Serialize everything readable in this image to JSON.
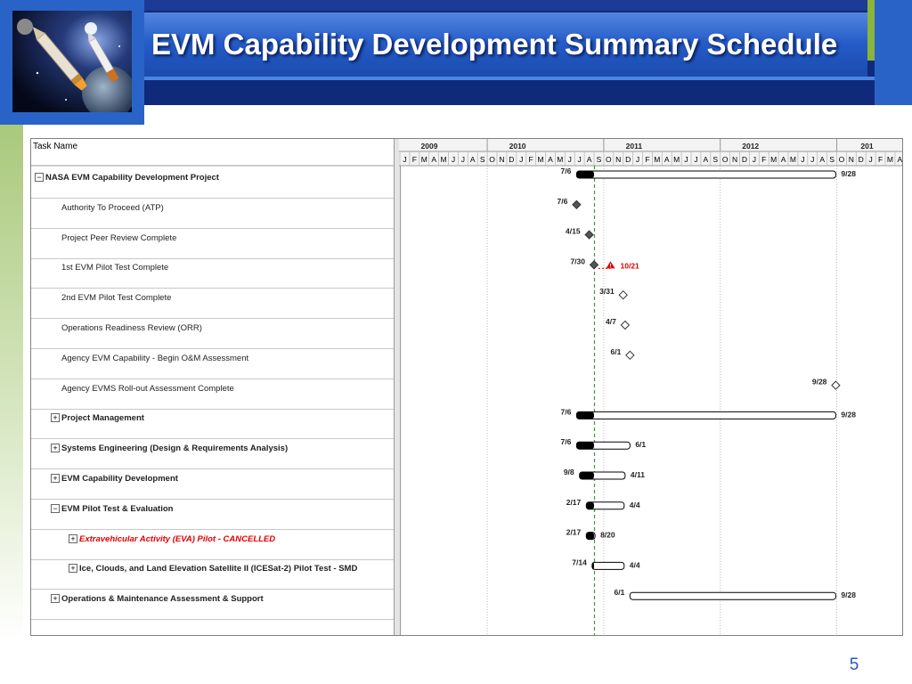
{
  "slide": {
    "title": "EVM Capability Development Summary Schedule",
    "page_number": "5"
  },
  "colors": {
    "header_dark": "#0f2a7a",
    "title_band": "#2359c4",
    "accent_green": "#8ab43c",
    "bar_fill": "#000000",
    "milestone_complete": "#555555",
    "status_line": "#3a9a3a",
    "slip_red": "#e00000"
  },
  "gantt": {
    "column_header": "Task Name",
    "years": [
      "2009",
      "2010",
      "2011",
      "2012",
      "201"
    ],
    "months": [
      "J",
      "F",
      "M",
      "A",
      "M",
      "J",
      "J",
      "A",
      "S",
      "O",
      "N",
      "D",
      "J",
      "F",
      "M",
      "A",
      "M",
      "J",
      "J",
      "A",
      "S",
      "O",
      "N",
      "D",
      "J",
      "F",
      "M",
      "A",
      "M",
      "J",
      "J",
      "A",
      "S",
      "O",
      "N",
      "D",
      "J",
      "F",
      "M",
      "A",
      "M",
      "J",
      "J",
      "A",
      "S",
      "O",
      "N",
      "D",
      "J",
      "F",
      "M",
      "A"
    ],
    "status_date": "8/2010",
    "tasks": [
      {
        "name": "NASA EVM Capability Development Project",
        "level": 0,
        "bold": true,
        "expander": "−",
        "kind": "summary",
        "start": "7/6",
        "end": "9/28",
        "start_month": 18.2,
        "status_month": 20.0,
        "end_month": 44.9
      },
      {
        "name": "Authority To Proceed (ATP)",
        "level": 2,
        "kind": "milestone-done",
        "label": "7/6",
        "month": 18.2
      },
      {
        "name": "Project Peer Review Complete",
        "level": 2,
        "kind": "milestone-done",
        "label": "4/15",
        "month": 19.5
      },
      {
        "name": "1st EVM Pilot Test Complete",
        "level": 2,
        "kind": "milestone-slip",
        "label": "7/30",
        "month": 20.0,
        "slip_label": "10/21",
        "slip_month": 21.7
      },
      {
        "name": "2nd EVM Pilot Test Complete",
        "level": 2,
        "kind": "milestone",
        "label": "3/31",
        "month": 23.0
      },
      {
        "name": "Operations Readiness Review (ORR)",
        "level": 2,
        "kind": "milestone",
        "label": "4/7",
        "month": 23.2
      },
      {
        "name": "Agency EVM Capability - Begin O&M Assessment",
        "level": 2,
        "kind": "milestone",
        "label": "6/1",
        "month": 23.7
      },
      {
        "name": "Agency EVMS Roll-out Assessment Complete",
        "level": 2,
        "kind": "milestone",
        "label": "9/28",
        "month": 44.9
      },
      {
        "name": "Project Management",
        "level": 1,
        "bold": true,
        "expander": "+",
        "kind": "bar",
        "start": "7/6",
        "end": "9/28",
        "start_month": 18.2,
        "status_month": 20.0,
        "end_month": 44.9
      },
      {
        "name": "Systems Engineering (Design & Requirements Analysis)",
        "level": 1,
        "bold": true,
        "expander": "+",
        "kind": "bar",
        "start": "7/6",
        "end": "6/1",
        "start_month": 18.2,
        "status_month": 20.0,
        "end_month": 23.7
      },
      {
        "name": "EVM Capability Development",
        "level": 1,
        "bold": true,
        "expander": "+",
        "kind": "bar",
        "start": "9/8",
        "end": "4/11",
        "start_month": 18.5,
        "status_month": 20.0,
        "end_month": 23.2
      },
      {
        "name": "EVM Pilot Test & Evaluation",
        "level": 1,
        "bold": true,
        "expander": "−",
        "kind": "bar",
        "start": "2/17",
        "end": "4/4",
        "start_month": 19.2,
        "status_month": 20.0,
        "end_month": 23.1
      },
      {
        "name": "Extravehicular Activity (EVA) Pilot - CANCELLED",
        "level": 2,
        "bold": true,
        "red": true,
        "expander": "+",
        "kind": "bar",
        "start": "2/17",
        "end": "8/20",
        "start_month": 19.2,
        "status_month": 20.0,
        "end_month": 20.1
      },
      {
        "name": "Ice, Clouds, and Land Elevation Satellite II (ICESat-2) Pilot Test - SMD",
        "level": 2,
        "bold": true,
        "expander": "+",
        "kind": "bar",
        "start": "7/14",
        "end": "4/4",
        "start_month": 19.8,
        "status_month": 20.0,
        "end_month": 23.1
      },
      {
        "name": "Operations & Maintenance Assessment & Support",
        "level": 1,
        "bold": true,
        "expander": "+",
        "kind": "bar-open",
        "start": "6/1",
        "end": "9/28",
        "start_month": 23.7,
        "end_month": 44.9
      }
    ]
  }
}
